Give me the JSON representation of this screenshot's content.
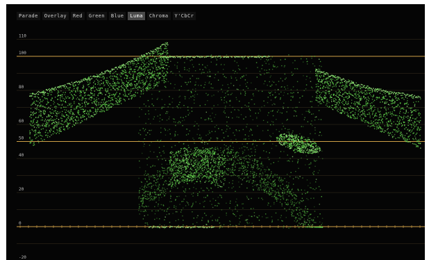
{
  "tabs": [
    {
      "label": "Parade",
      "active": false
    },
    {
      "label": "Overlay",
      "active": false
    },
    {
      "label": "Red",
      "active": false
    },
    {
      "label": "Green",
      "active": false
    },
    {
      "label": "Blue",
      "active": false
    },
    {
      "label": "Luma",
      "active": true
    },
    {
      "label": "Chroma",
      "active": false
    },
    {
      "label": "Y'CbCr",
      "active": false
    }
  ],
  "scale": {
    "labels": [
      "110",
      "100",
      "80",
      "60",
      "50",
      "40",
      "20",
      "0",
      "-20"
    ],
    "values": [
      110,
      100,
      80,
      60,
      50,
      40,
      20,
      0,
      -20
    ],
    "min": -20,
    "max": 110,
    "emphasized": [
      100,
      50,
      0
    ]
  },
  "colors": {
    "background": "#050505",
    "trace": "#5fd34a",
    "trace_bright": "#a6f58a",
    "graticule": "#d9a94a",
    "graticule_dim": "#6b5a36"
  }
}
